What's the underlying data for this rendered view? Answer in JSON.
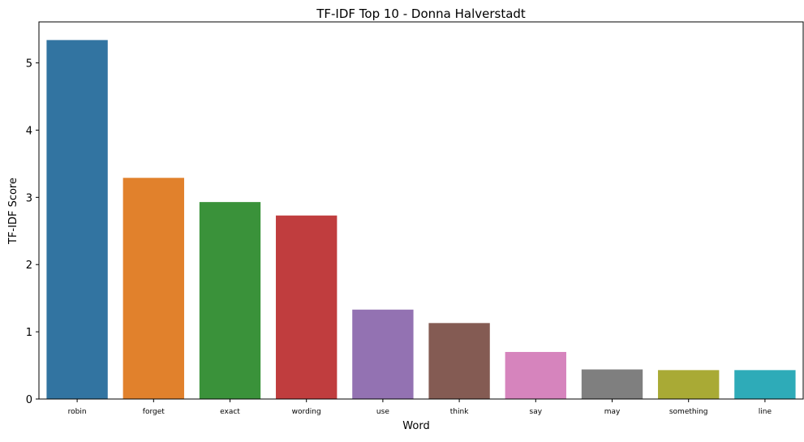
{
  "chart_data": {
    "type": "bar",
    "title": "TF-IDF Top 10 - Donna Halverstadt",
    "xlabel": "Word",
    "ylabel": "TF-IDF Score",
    "categories": [
      "robin",
      "forget",
      "exact",
      "wording",
      "use",
      "think",
      "say",
      "may",
      "something",
      "line"
    ],
    "values": [
      5.34,
      3.29,
      2.93,
      2.73,
      1.33,
      1.13,
      0.7,
      0.44,
      0.43,
      0.43
    ],
    "colors": [
      "#3274a1",
      "#e1812c",
      "#3a923a",
      "#c03d3e",
      "#9372b2",
      "#845b53",
      "#d684bd",
      "#7f7f7f",
      "#a9aa35",
      "#2eabb8"
    ],
    "yticks": [
      0,
      1,
      2,
      3,
      4,
      5
    ],
    "ylim": [
      0,
      5.61
    ],
    "grid": false,
    "legend": "none"
  }
}
